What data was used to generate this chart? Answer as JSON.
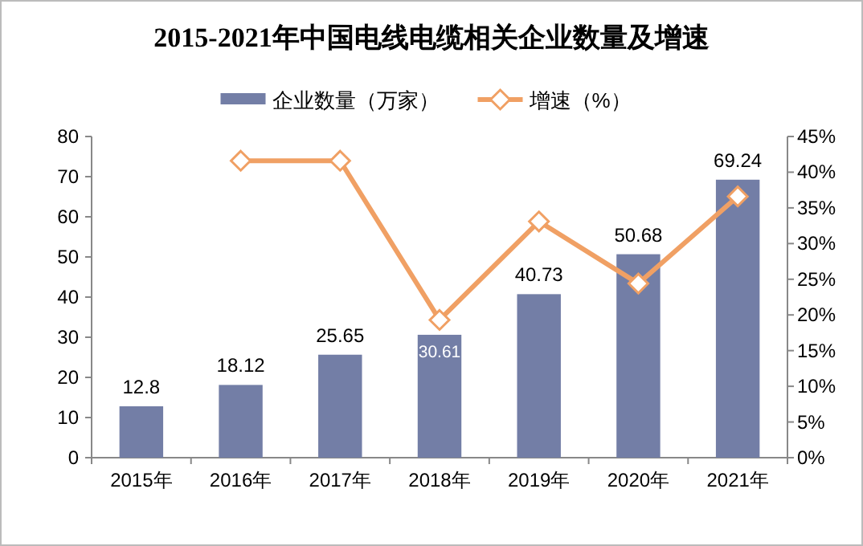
{
  "chart_data": {
    "type": "bar",
    "title": "2015-2021年中国电线电缆相关企业数量及增速",
    "categories": [
      "2015年",
      "2016年",
      "2017年",
      "2018年",
      "2019年",
      "2020年",
      "2021年"
    ],
    "series": [
      {
        "name": "企业数量（万家）",
        "color": "#737ea6",
        "values": [
          12.8,
          18.12,
          25.65,
          30.61,
          40.73,
          50.68,
          69.24
        ],
        "value_labels": [
          "12.8",
          "18.12",
          "25.65",
          "30.61",
          "40.73",
          "50.68",
          "69.24"
        ]
      },
      {
        "name": "增速（%）",
        "type": "line",
        "axis": "y2",
        "color": "#f0a064",
        "marker": "diamond",
        "values": [
          null,
          41.6,
          41.6,
          19.3,
          33.1,
          24.4,
          36.6
        ]
      }
    ],
    "ylim": [
      0,
      80
    ],
    "yticks": [
      0,
      10,
      20,
      30,
      40,
      50,
      60,
      70,
      80
    ],
    "y2lim": [
      0,
      45
    ],
    "y2ticks": [
      {
        "value": 0,
        "label": "0%"
      },
      {
        "value": 5,
        "label": "5%"
      },
      {
        "value": 10,
        "label": "10%"
      },
      {
        "value": 15,
        "label": "15%"
      },
      {
        "value": 20,
        "label": "20%"
      },
      {
        "value": 25,
        "label": "25%"
      },
      {
        "value": 30,
        "label": "30%"
      },
      {
        "value": 35,
        "label": "35%"
      },
      {
        "value": 40,
        "label": "40%"
      },
      {
        "value": 45,
        "label": "45%"
      }
    ],
    "legend": "top",
    "grid": false
  }
}
